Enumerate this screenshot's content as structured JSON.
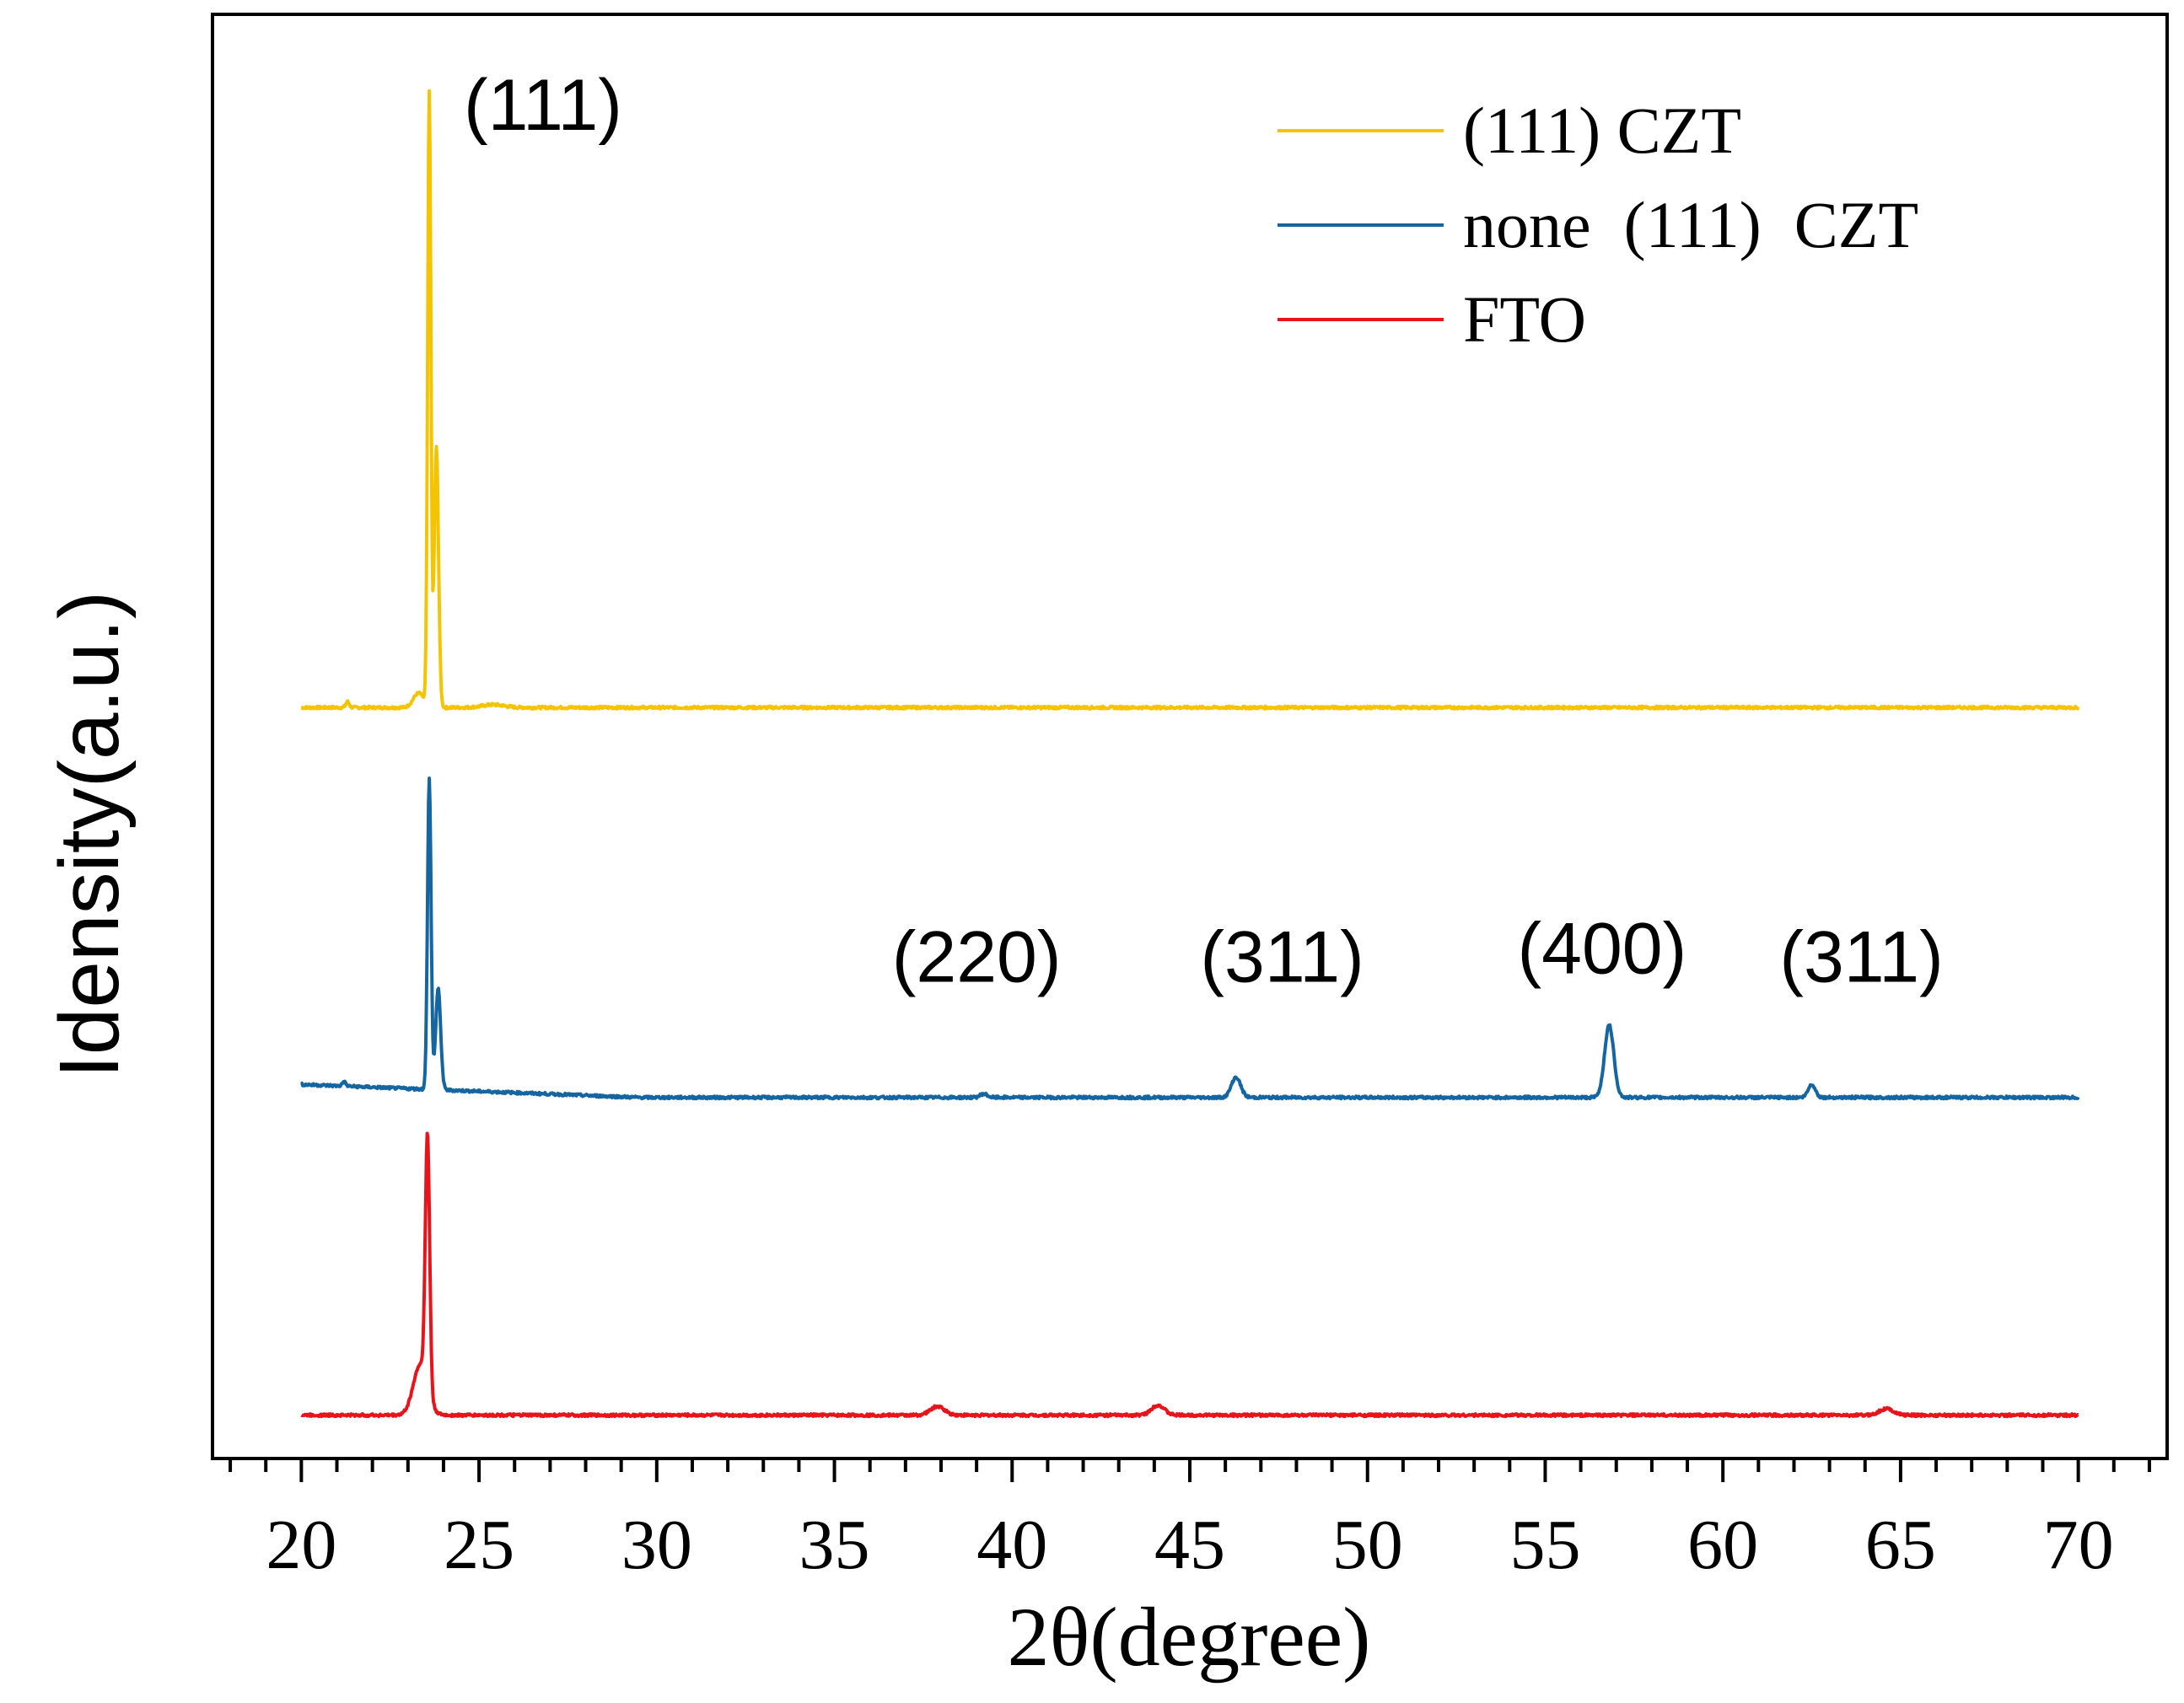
{
  "chart_data": {
    "type": "line",
    "title": "",
    "xlabel": "2θ(degree)",
    "ylabel": "Idensity(a.u.)",
    "xlim": [
      17.5,
      72.5
    ],
    "ylim": [
      0,
      100
    ],
    "x_ticks": [
      20,
      25,
      30,
      35,
      40,
      45,
      50,
      55,
      60,
      65,
      70
    ],
    "x_tick_labels": [
      "20",
      "25",
      "30",
      "35",
      "40",
      "45",
      "50",
      "55",
      "60",
      "65",
      "70"
    ],
    "grid": false,
    "legend_position": "top-right",
    "series": [
      {
        "name": "(111) CZT",
        "color": "#F5C400",
        "baseline": 52,
        "peaks": [
          {
            "x": 21.3,
            "height": 0.4,
            "width": 0.05
          },
          {
            "x": 23.3,
            "height": 1.0,
            "width": 0.15
          },
          {
            "x": 23.6,
            "height": 42.5,
            "width": 0.045
          },
          {
            "x": 23.8,
            "height": 18.0,
            "width": 0.06
          },
          {
            "x": 25.4,
            "height": 0.2,
            "width": 0.3
          }
        ]
      },
      {
        "name": "none  (111)  CZT",
        "color": "#1566A0",
        "baseline": 25,
        "peaks": [
          {
            "x": 21.2,
            "height": 0.3,
            "width": 0.05
          },
          {
            "x": 23.6,
            "height": 21.5,
            "width": 0.05
          },
          {
            "x": 23.85,
            "height": 7.0,
            "width": 0.07
          },
          {
            "x": 39.2,
            "height": 0.25,
            "width": 0.1
          },
          {
            "x": 46.3,
            "height": 1.4,
            "width": 0.13
          },
          {
            "x": 56.8,
            "height": 5.0,
            "width": 0.13
          },
          {
            "x": 62.5,
            "height": 0.9,
            "width": 0.1
          }
        ]
      },
      {
        "name": "FTO",
        "color": "#E8141B",
        "baseline": 3,
        "peaks": [
          {
            "x": 23.55,
            "height": 17.5,
            "width": 0.06
          },
          {
            "x": 23.35,
            "height": 3.5,
            "width": 0.2
          },
          {
            "x": 37.9,
            "height": 0.6,
            "width": 0.2
          },
          {
            "x": 44.1,
            "height": 0.7,
            "width": 0.18
          },
          {
            "x": 64.6,
            "height": 0.45,
            "width": 0.2
          }
        ]
      }
    ],
    "annotations": [
      {
        "text": "(111)",
        "x": 26.8,
        "y": 92
      },
      {
        "text": "(220)",
        "x": 39.0,
        "y": 33
      },
      {
        "text": "(311)",
        "x": 47.6,
        "y": 33
      },
      {
        "text": "(400)",
        "x": 56.6,
        "y": 33.6
      },
      {
        "text": "(311)",
        "x": 63.9,
        "y": 33
      }
    ]
  }
}
